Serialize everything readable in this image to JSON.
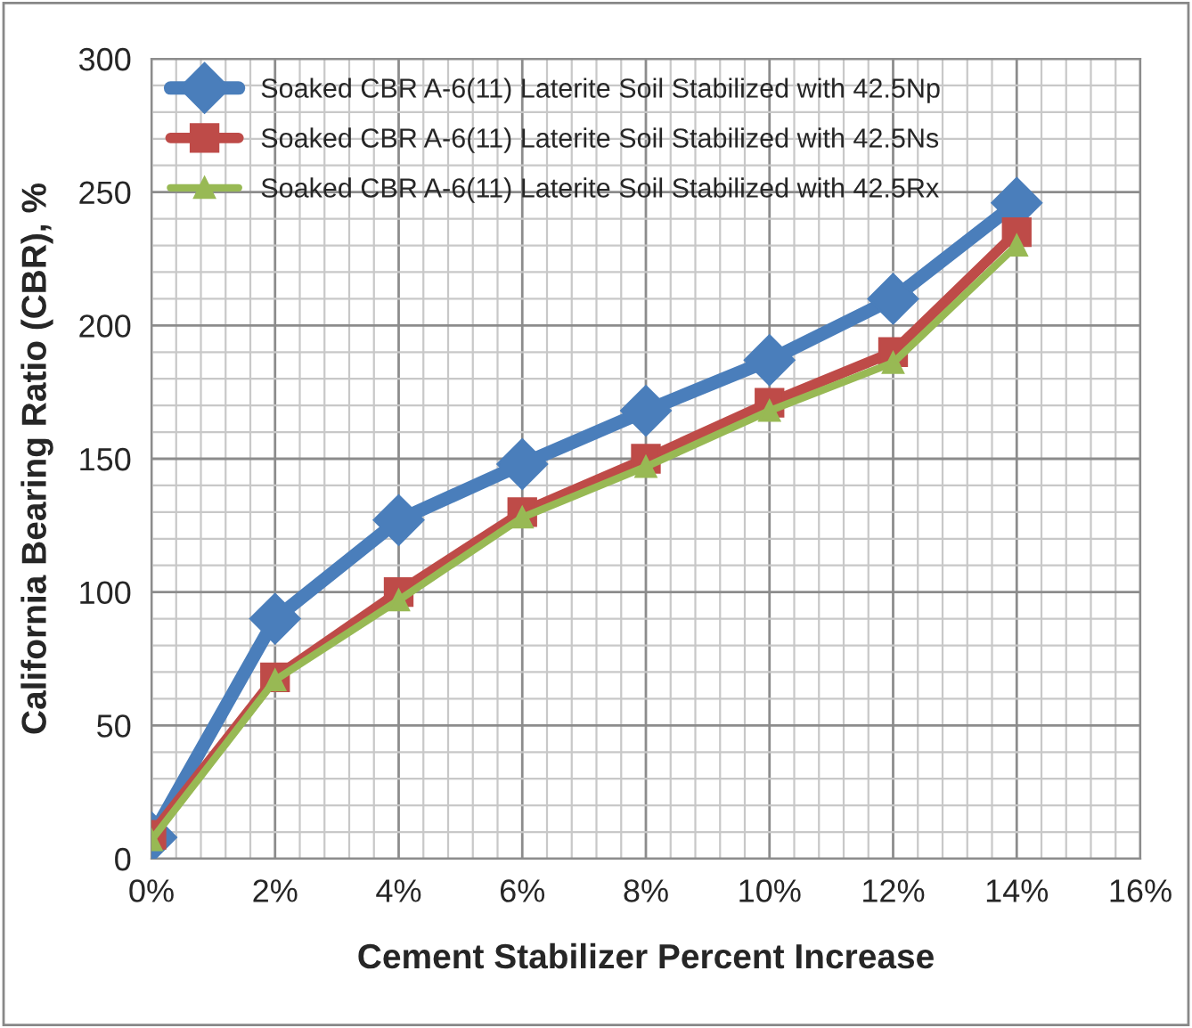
{
  "chart_data": {
    "type": "line",
    "xlabel": "Cement Stabilizer Percent Increase",
    "ylabel": "California Bearing Ratio (CBR), %",
    "x": [
      0,
      2,
      4,
      6,
      8,
      10,
      12,
      14
    ],
    "series": [
      {
        "name": "Soaked CBR A-6(11) Laterite Soil Stabilized with 42.5Np",
        "color": "#4a7ebb",
        "marker": "diamond",
        "values": [
          8,
          90,
          127,
          148,
          168,
          187,
          210,
          246
        ]
      },
      {
        "name": "Soaked CBR A-6(11) Laterite Soil Stabilized with 42.5Ns",
        "color": "#be4b48",
        "marker": "square",
        "values": [
          9,
          68,
          100,
          130,
          150,
          171,
          190,
          235
        ]
      },
      {
        "name": "Soaked CBR A-6(11) Laterite Soil Stabilized with 42.5Rx",
        "color": "#98b954",
        "marker": "triangle",
        "values": [
          7,
          67,
          97,
          128,
          147,
          168,
          186,
          230
        ]
      }
    ],
    "xlim": [
      0,
      16
    ],
    "ylim": [
      0,
      300
    ],
    "xticks": [
      {
        "value": 0,
        "label": "0%"
      },
      {
        "value": 2,
        "label": "2%"
      },
      {
        "value": 4,
        "label": "4%"
      },
      {
        "value": 6,
        "label": "6%"
      },
      {
        "value": 8,
        "label": "8%"
      },
      {
        "value": 10,
        "label": "10%"
      },
      {
        "value": 12,
        "label": "12%"
      },
      {
        "value": 14,
        "label": "14%"
      },
      {
        "value": 16,
        "label": "16%"
      }
    ],
    "yticks": [
      0,
      50,
      100,
      150,
      200,
      250,
      300
    ],
    "grid": true,
    "legend": "top left"
  }
}
